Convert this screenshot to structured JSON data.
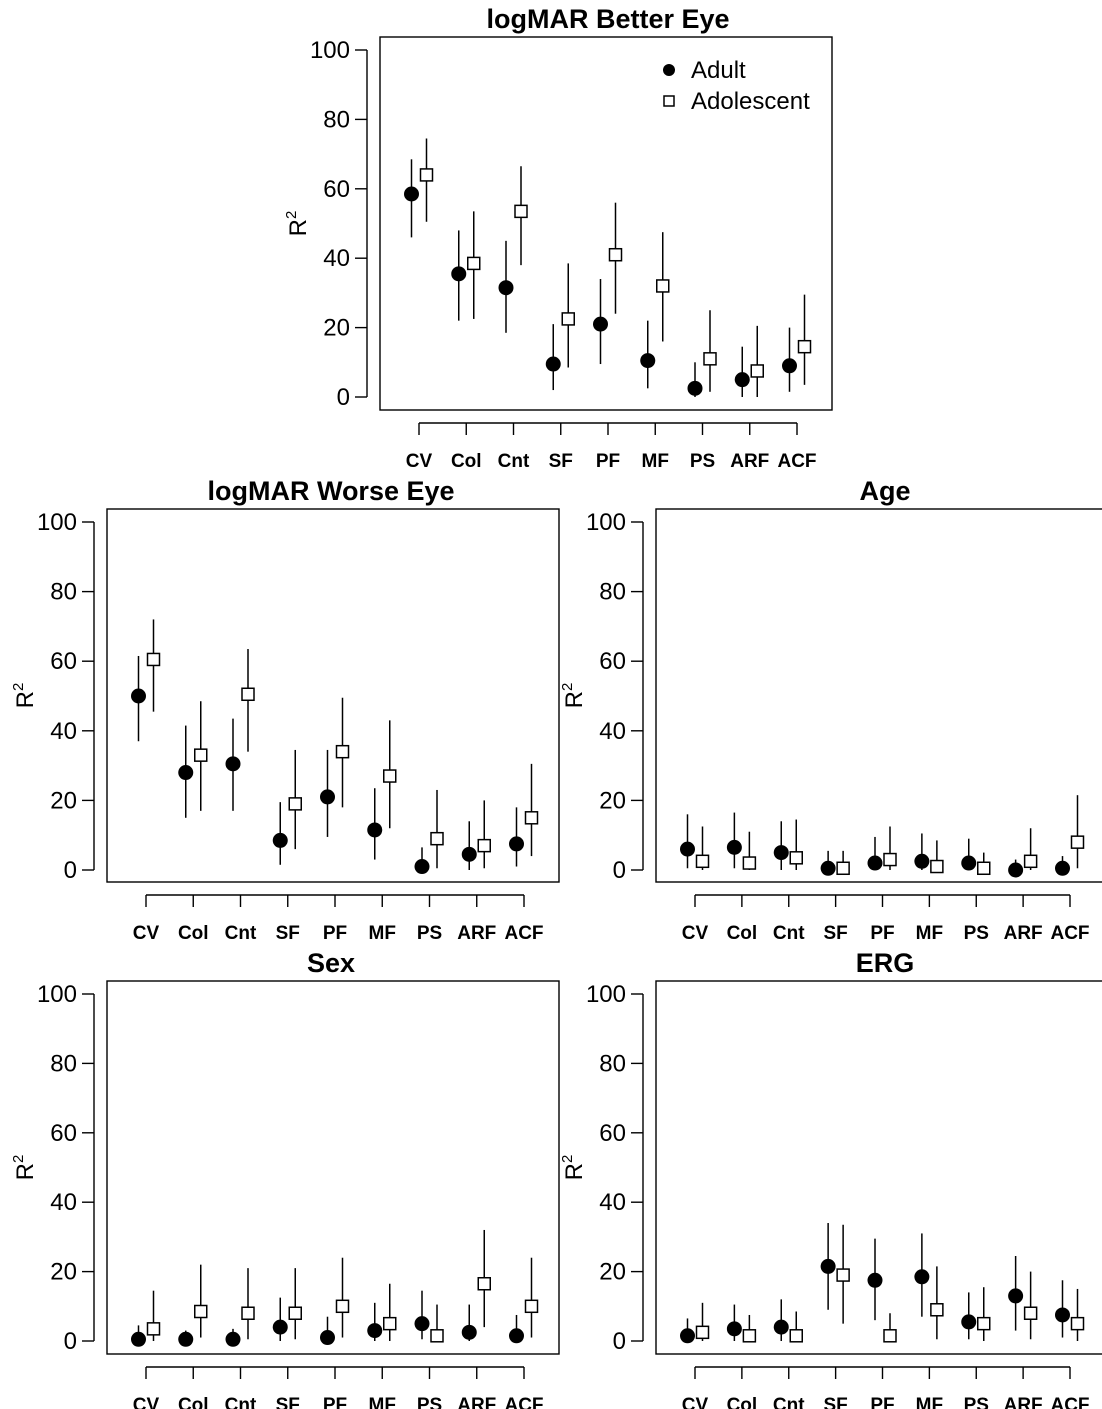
{
  "chart_data": [
    {
      "type": "scatter",
      "title": "logMAR Better Eye",
      "ylabel": "R",
      "ylabel_superscript": "2",
      "ylim": [
        0,
        100
      ],
      "yticks": [
        "0",
        "20",
        "40",
        "60",
        "80",
        "100"
      ],
      "categories": [
        "CV",
        "Col",
        "Cnt",
        "SF",
        "PF",
        "MF",
        "PS",
        "ARF",
        "ACF"
      ],
      "legend": {
        "position": "top-right",
        "entries": [
          "Adult",
          "Adolescent"
        ]
      },
      "series": [
        {
          "name": "Adult",
          "marker": "filled-circle",
          "values": [
            58.5,
            35.5,
            31.5,
            9.5,
            21,
            10.5,
            2.5,
            5,
            9
          ],
          "lower": [
            46,
            22,
            18.5,
            2,
            9.5,
            2.5,
            0,
            0,
            1.5
          ],
          "upper": [
            68.5,
            48,
            45,
            21,
            34,
            22,
            10,
            14.5,
            20
          ]
        },
        {
          "name": "Adolescent",
          "marker": "open-square",
          "values": [
            64,
            38.5,
            53.5,
            22.5,
            41,
            32,
            11,
            7.5,
            14.5
          ],
          "lower": [
            50.5,
            22.5,
            38,
            8.5,
            24,
            16,
            1.5,
            0,
            3.5
          ],
          "upper": [
            74.5,
            53.5,
            66.5,
            38.5,
            56,
            47.5,
            25,
            20.5,
            29.5
          ]
        }
      ]
    },
    {
      "type": "scatter",
      "title": "logMAR Worse Eye",
      "ylabel": "R",
      "ylabel_superscript": "2",
      "ylim": [
        0,
        100
      ],
      "yticks": [
        "0",
        "20",
        "40",
        "60",
        "80",
        "100"
      ],
      "categories": [
        "CV",
        "Col",
        "Cnt",
        "SF",
        "PF",
        "MF",
        "PS",
        "ARF",
        "ACF"
      ],
      "series": [
        {
          "name": "Adult",
          "marker": "filled-circle",
          "values": [
            50,
            28,
            30.5,
            8.5,
            21,
            11.5,
            1,
            4.5,
            7.5
          ],
          "lower": [
            37,
            15,
            17,
            1.5,
            9.5,
            3,
            0,
            0,
            1
          ],
          "upper": [
            61.5,
            41.5,
            43.5,
            19.5,
            34.5,
            23.5,
            6.5,
            14,
            18
          ]
        },
        {
          "name": "Adolescent",
          "marker": "open-square",
          "values": [
            60.5,
            33,
            50.5,
            19,
            34,
            27,
            9,
            7,
            15
          ],
          "lower": [
            45.5,
            17,
            34,
            6,
            18,
            12,
            0.5,
            0.5,
            4
          ],
          "upper": [
            72,
            48.5,
            63.5,
            34.5,
            49.5,
            43,
            23,
            20,
            30.5
          ]
        }
      ]
    },
    {
      "type": "scatter",
      "title": "Age",
      "ylabel": "R",
      "ylabel_superscript": "2",
      "ylim": [
        0,
        100
      ],
      "yticks": [
        "0",
        "20",
        "40",
        "60",
        "80",
        "100"
      ],
      "categories": [
        "CV",
        "Col",
        "Cnt",
        "SF",
        "PF",
        "MF",
        "PS",
        "ARF",
        "ACF"
      ],
      "series": [
        {
          "name": "Adult",
          "marker": "filled-circle",
          "values": [
            6,
            6.5,
            5,
            0.5,
            2,
            2.5,
            2,
            0,
            0.5
          ],
          "lower": [
            0.5,
            0.5,
            0,
            0,
            0,
            0,
            0,
            0,
            0
          ],
          "upper": [
            16,
            16.5,
            14,
            5.5,
            9.5,
            10.5,
            9,
            3,
            4
          ]
        },
        {
          "name": "Adolescent",
          "marker": "open-square",
          "values": [
            2.5,
            2,
            3.5,
            0.5,
            3,
            1,
            0.5,
            2.5,
            8
          ],
          "lower": [
            0,
            0,
            0,
            0,
            0,
            0,
            0,
            0,
            0.5
          ],
          "upper": [
            12.5,
            11,
            14.5,
            5.5,
            12.5,
            8.5,
            5,
            12,
            21.5
          ]
        }
      ]
    },
    {
      "type": "scatter",
      "title": "Sex",
      "ylabel": "R",
      "ylabel_superscript": "2",
      "ylim": [
        0,
        100
      ],
      "yticks": [
        "0",
        "20",
        "40",
        "60",
        "80",
        "100"
      ],
      "categories": [
        "CV",
        "Col",
        "Cnt",
        "SF",
        "PF",
        "MF",
        "PS",
        "ARF",
        "ACF"
      ],
      "series": [
        {
          "name": "Adult",
          "marker": "filled-circle",
          "values": [
            0.5,
            0.5,
            0.5,
            4,
            1,
            3,
            5,
            2.5,
            1.5
          ],
          "lower": [
            0,
            0,
            0,
            0,
            0,
            0,
            0.5,
            0,
            0
          ],
          "upper": [
            4.5,
            3,
            3.5,
            12.5,
            7,
            11,
            14.5,
            10.5,
            7.5
          ]
        },
        {
          "name": "Adolescent",
          "marker": "open-square",
          "values": [
            3.5,
            8.5,
            8,
            8,
            10,
            5,
            1.5,
            16.5,
            10
          ],
          "lower": [
            0,
            1,
            0.5,
            0.5,
            1,
            0,
            0,
            4,
            1
          ],
          "upper": [
            14.5,
            22,
            21,
            21,
            24,
            16.5,
            10.5,
            32,
            24
          ]
        }
      ]
    },
    {
      "type": "scatter",
      "title": "ERG",
      "ylabel": "R",
      "ylabel_superscript": "2",
      "ylim": [
        0,
        100
      ],
      "yticks": [
        "0",
        "20",
        "40",
        "60",
        "80",
        "100"
      ],
      "categories": [
        "CV",
        "Col",
        "Cnt",
        "SF",
        "PF",
        "MF",
        "PS",
        "ARF",
        "ACF"
      ],
      "series": [
        {
          "name": "Adult",
          "marker": "filled-circle",
          "values": [
            1.5,
            3.5,
            4,
            21.5,
            17.5,
            18.5,
            5.5,
            13,
            7.5
          ],
          "lower": [
            0,
            0,
            0,
            9,
            6,
            7,
            0.5,
            3,
            1
          ],
          "upper": [
            6.5,
            10.5,
            12,
            34,
            29.5,
            31,
            14,
            24.5,
            17.5
          ]
        },
        {
          "name": "Adolescent",
          "marker": "open-square",
          "values": [
            2.5,
            1.5,
            1.5,
            19,
            1.5,
            9,
            5,
            8,
            5
          ],
          "lower": [
            0,
            0,
            0,
            5,
            0,
            0.5,
            0,
            0.5,
            0
          ],
          "upper": [
            11,
            7.5,
            8.5,
            33.5,
            8,
            21.5,
            15.5,
            20,
            15
          ]
        }
      ]
    }
  ]
}
